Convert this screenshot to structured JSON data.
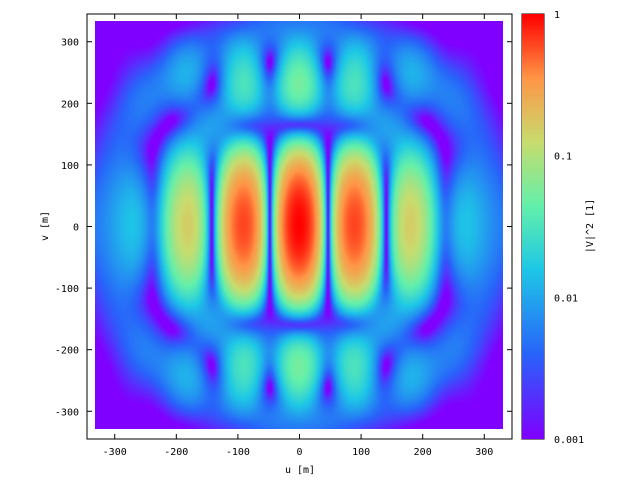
{
  "chart_data": {
    "type": "heatmap",
    "title": "",
    "xlabel": "u [m]",
    "ylabel": "v [m]",
    "xlim": [
      -345,
      345
    ],
    "ylim": [
      -345,
      345
    ],
    "data_extent": {
      "u": [
        -333,
        333
      ],
      "v": [
        -333,
        333
      ]
    },
    "xticks": [
      -300,
      -200,
      -100,
      0,
      100,
      200,
      300
    ],
    "yticks": [
      -300,
      -200,
      -100,
      0,
      100,
      200,
      300
    ],
    "colorbar": {
      "label": "|V|^2 [1]",
      "scale": "log",
      "range": [
        0.001,
        1
      ],
      "tick_values": [
        0.001,
        0.01,
        0.1,
        1
      ],
      "tick_labels": [
        "0.001",
        "0.01",
        "0.1",
        "1"
      ],
      "colormap": "rainbow (purple → blue → cyan → green → yellow → orange → red)"
    },
    "peaks": [
      {
        "u": 0,
        "v": 0,
        "value": 1.0
      },
      {
        "u": -95,
        "v": 0,
        "value": 0.35
      },
      {
        "u": 95,
        "v": 0,
        "value": 0.35
      },
      {
        "u": 0,
        "v": 270,
        "value": 0.012
      },
      {
        "u": 0,
        "v": -270,
        "value": 0.012
      },
      {
        "u": -240,
        "v": 0,
        "value": 0.005
      },
      {
        "u": 240,
        "v": 0,
        "value": 0.005
      }
    ],
    "colors": {
      "background": "#8000ff",
      "peak": "#ff0000"
    }
  }
}
